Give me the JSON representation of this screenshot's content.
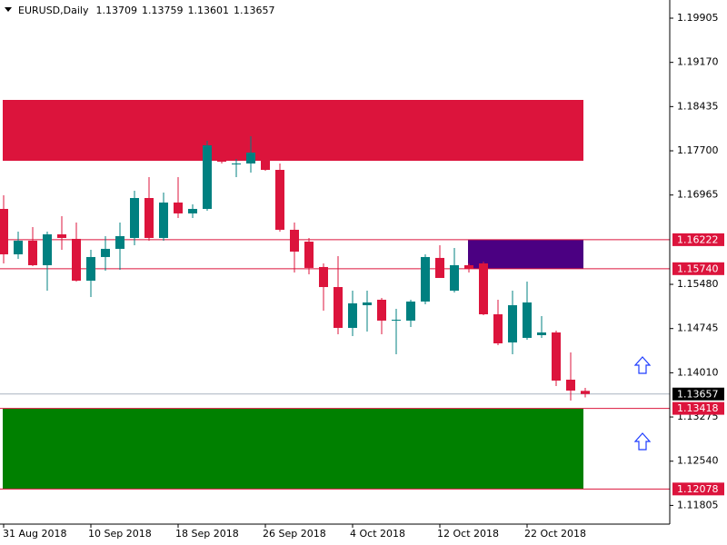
{
  "chart_data": {
    "type": "candlestick",
    "title": "EURUSD,Daily",
    "categories": [
      "31 Aug 2018",
      null,
      null,
      null,
      null,
      null,
      "10 Sep 2018",
      null,
      null,
      null,
      null,
      null,
      "18 Sep 2018",
      null,
      null,
      null,
      null,
      null,
      "26 Sep 2018",
      null,
      null,
      null,
      null,
      null,
      "4 Oct 2018",
      null,
      null,
      null,
      null,
      null,
      "12 Oct 2018",
      null,
      null,
      null,
      null,
      null,
      "22 Oct 2018",
      null,
      null,
      null,
      null
    ],
    "open": [
      1.16734,
      1.15979,
      1.16206,
      1.15798,
      1.16311,
      1.16236,
      1.15541,
      1.15934,
      1.1607,
      1.16251,
      1.16915,
      1.16251,
      1.1684,
      1.16659,
      1.16734,
      1.17791,
      1.17489,
      1.17489,
      1.17565,
      1.17383,
      1.16387,
      1.1619,
      1.15768,
      1.15435,
      1.14756,
      1.15133,
      1.15224,
      1.14877,
      1.14877,
      1.15194,
      1.15919,
      1.15375,
      1.15798,
      1.15828,
      1.14982,
      1.14514,
      1.1459,
      1.14635,
      1.1468,
      1.13895,
      1.13709
    ],
    "high": [
      1.16961,
      1.16357,
      1.16432,
      1.16357,
      1.16613,
      1.16508,
      1.16055,
      1.16281,
      1.16508,
      1.17036,
      1.17263,
      1.17006,
      1.17263,
      1.1681,
      1.17867,
      1.17942,
      1.17565,
      1.17942,
      1.1764,
      1.17489,
      1.16508,
      1.16251,
      1.15828,
      1.15949,
      1.15375,
      1.15375,
      1.15254,
      1.15073,
      1.15224,
      1.15979,
      1.1613,
      1.16085,
      1.15828,
      1.15858,
      1.15224,
      1.15375,
      1.15526,
      1.14952,
      1.14711,
      1.14348,
      1.13759
    ],
    "low": [
      1.15828,
      1.15904,
      1.15783,
      1.15375,
      1.16055,
      1.15526,
      1.15269,
      1.15707,
      1.15722,
      1.1613,
      1.16206,
      1.16206,
      1.16583,
      1.16583,
      1.16704,
      1.17489,
      1.17263,
      1.17338,
      1.17368,
      1.16357,
      1.15677,
      1.15647,
      1.15043,
      1.1465,
      1.1462,
      1.14696,
      1.1465,
      1.14318,
      1.14771,
      1.15149,
      1.15586,
      1.15345,
      1.15677,
      1.14967,
      1.14469,
      1.14318,
      1.1456,
      1.1459,
      1.1379,
      1.13548,
      1.13601
    ],
    "close": [
      1.15979,
      1.16206,
      1.15798,
      1.16311,
      1.16251,
      1.15541,
      1.15934,
      1.1607,
      1.16281,
      1.16915,
      1.16251,
      1.1684,
      1.16659,
      1.16734,
      1.17791,
      1.17519,
      1.17489,
      1.1767,
      1.17383,
      1.16387,
      1.16024,
      1.15753,
      1.15435,
      1.14756,
      1.15164,
      1.15179,
      1.14877,
      1.14892,
      1.15194,
      1.15934,
      1.15586,
      1.15798,
      1.15737,
      1.14982,
      1.14499,
      1.15133,
      1.15179,
      1.1468,
      1.1388,
      1.13714,
      1.13657
    ],
    "up_color": "#008080",
    "down_color": "#dc143c",
    "ylim": [
      1.11494,
      1.20207
    ],
    "yticks": [
      1.19905,
      {
        "value": 1.1917,
        "label": "1.19170"
      },
      1.18435,
      {
        "value": 1.177,
        "label": "1.17700"
      },
      1.16965,
      {
        "value": 1.1548,
        "label": "1.15480"
      },
      1.14745,
      {
        "value": 1.1401,
        "label": "1.14010"
      },
      1.13275,
      {
        "value": 1.1254,
        "label": "1.12540"
      },
      1.11805
    ],
    "zones": [
      {
        "top": 1.18546,
        "bottom": 1.17534,
        "color": "#dc143c"
      },
      {
        "top": 1.16222,
        "bottom": 1.1574,
        "color": "#4b0082"
      },
      {
        "top": 1.13418,
        "bottom": 1.12078,
        "color": "#008000"
      }
    ],
    "levels": [
      {
        "value": 1.16222,
        "color": "#dc143c"
      },
      {
        "value": 1.1574,
        "label": "1.15740",
        "color": "#dc143c"
      },
      {
        "value": 1.13657,
        "color": "#000000",
        "line_color": "#a9b4c0"
      },
      {
        "value": 1.13418,
        "color": "#dc143c"
      },
      {
        "value": 1.12078,
        "color": "#dc143c"
      }
    ]
  }
}
